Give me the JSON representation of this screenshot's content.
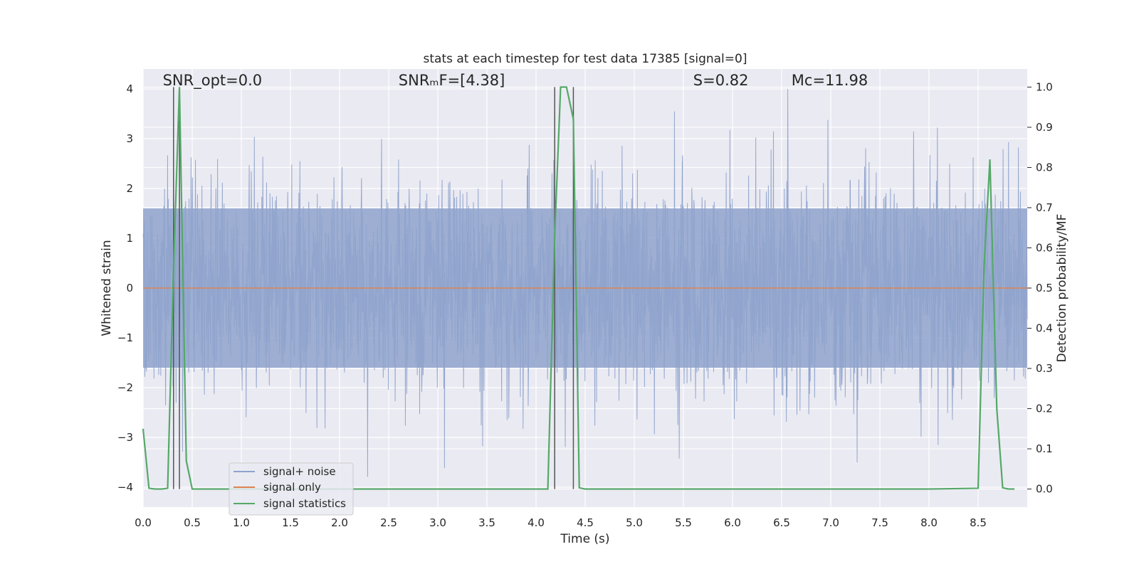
{
  "chart_data": {
    "type": "line",
    "title": "stats at each timestep for test data 17385 [signal=0]",
    "xlabel": "Time (s)",
    "ylabel": "Whitened strain",
    "y2label": "Detection probability/MF",
    "xlim": [
      0,
      9.0
    ],
    "ylim": [
      -4.4,
      4.4
    ],
    "y2lim": [
      -0.045,
      1.045
    ],
    "x_ticks": [
      0.0,
      0.5,
      1.0,
      1.5,
      2.0,
      2.5,
      3.0,
      3.5,
      4.0,
      4.5,
      5.0,
      5.5,
      6.0,
      6.5,
      7.0,
      7.5,
      8.0,
      8.5
    ],
    "x_tick_labels": [
      "0.0",
      "0.5",
      "1.0",
      "1.5",
      "2.0",
      "2.5",
      "3.0",
      "3.5",
      "4.0",
      "4.5",
      "5.0",
      "5.5",
      "6.0",
      "6.5",
      "7.0",
      "7.5",
      "8.0",
      "8.5"
    ],
    "y_ticks": [
      -4,
      -3,
      -2,
      -1,
      0,
      1,
      2,
      3,
      4
    ],
    "y_tick_labels": [
      "−4",
      "−3",
      "−2",
      "−1",
      "0",
      "1",
      "2",
      "3",
      "4"
    ],
    "y2_ticks": [
      0.0,
      0.1,
      0.2,
      0.3,
      0.4,
      0.5,
      0.6,
      0.7,
      0.8,
      0.9,
      1.0
    ],
    "y2_tick_labels": [
      "0.0",
      "0.1",
      "0.2",
      "0.3",
      "0.4",
      "0.5",
      "0.6",
      "0.7",
      "0.8",
      "0.9",
      "1.0"
    ],
    "grid": true,
    "legend_position": "bottom-left",
    "annotations": [
      {
        "text": "SNR_opt=0.0",
        "x": 0.2,
        "y": 4.1
      },
      {
        "text": "SNRₘF=[4.38]",
        "x": 2.6,
        "y": 4.1
      },
      {
        "text": "S=0.82",
        "x": 5.6,
        "y": 4.1
      },
      {
        "text": "Mᴄ=11.98",
        "x": 6.6,
        "y": 4.1
      }
    ],
    "vlines": [
      0.31,
      0.37,
      4.19,
      4.38
    ],
    "series": [
      {
        "name": "signal+ noise",
        "color": "#8fa3cc",
        "axis": "left",
        "kind": "noise",
        "envelope": 1.6,
        "max_abs": 4.0
      },
      {
        "name": "signal only",
        "color": "#dd8452",
        "axis": "left",
        "x": [
          0.0,
          9.0
        ],
        "y": [
          0.0,
          0.0
        ]
      },
      {
        "name": "signal statistics",
        "color": "#55a868",
        "axis": "right",
        "x": [
          0.0,
          0.06,
          0.12,
          0.19,
          0.25,
          0.31,
          0.37,
          0.4,
          0.44,
          0.5,
          1.0,
          2.0,
          3.0,
          4.0,
          4.12,
          4.19,
          4.25,
          4.31,
          4.38,
          4.44,
          4.5,
          5.0,
          6.0,
          7.0,
          8.0,
          8.5,
          8.56,
          8.62,
          8.69,
          8.75,
          8.81,
          8.87
        ],
        "y": [
          0.15,
          0.002,
          0.0,
          0.0,
          0.002,
          0.55,
          1.0,
          0.6,
          0.07,
          0.0,
          0.0,
          0.0,
          0.0,
          0.0,
          0.0,
          0.63,
          1.0,
          1.0,
          0.92,
          0.003,
          0.0,
          0.0,
          0.0,
          0.0,
          0.0,
          0.002,
          0.55,
          0.82,
          0.2,
          0.003,
          0.0,
          0.0
        ]
      }
    ]
  }
}
